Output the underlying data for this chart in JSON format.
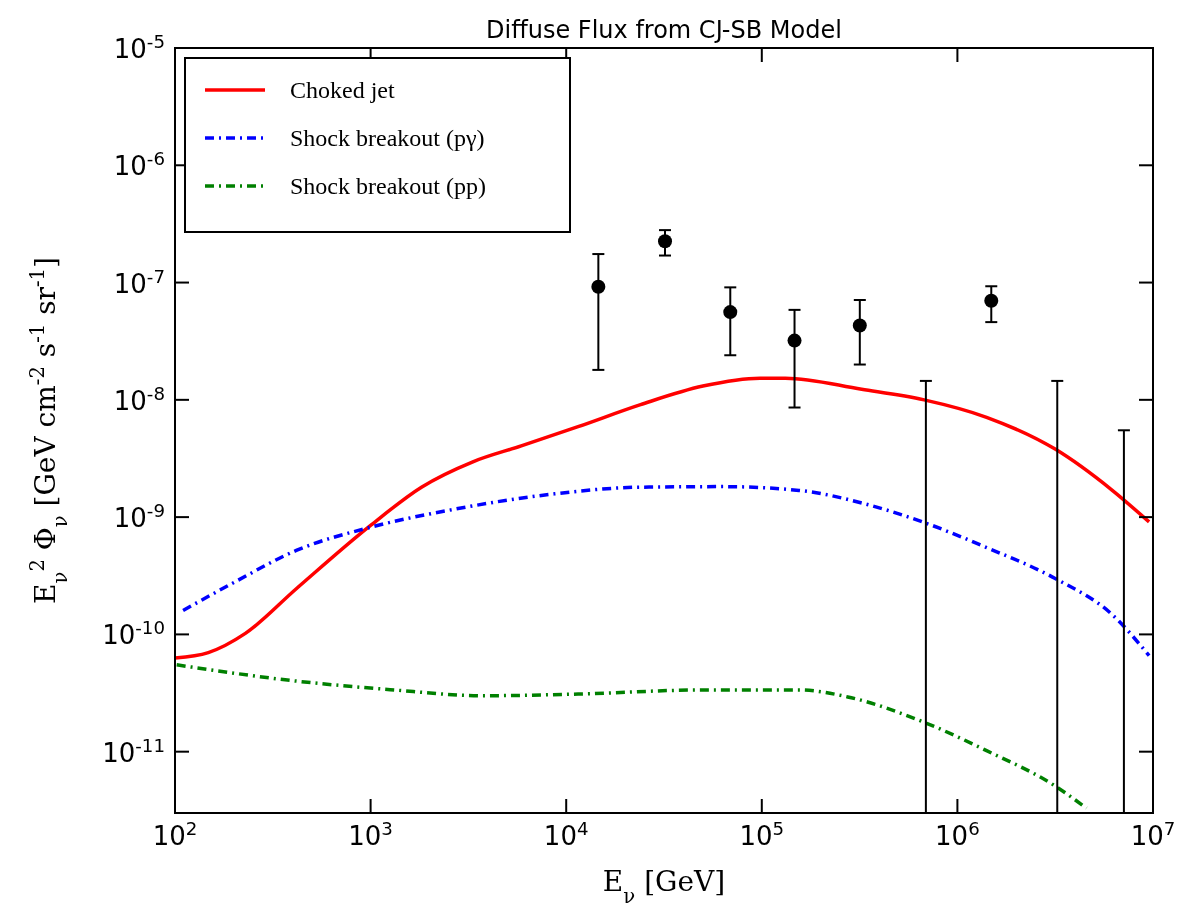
{
  "chart_data": {
    "type": "line",
    "title": "Diffuse Flux from CJ-SB Model",
    "xlabel": "E$_{ν}$  [GeV]",
    "ylabel": "E$_{ν}$$^{2}$ Φ$_{ν}$  [GeV cm$^{-2}$ s$^{-1}$ sr$^{-1}$]",
    "log": "xy",
    "grid": false,
    "legend": "top left",
    "xlim": [
      100,
      10000000
    ],
    "ylim": [
      3e-12,
      1e-05
    ],
    "xticks": [
      {
        "value": 100,
        "label": "10$^{2}$"
      },
      {
        "value": 1000,
        "label": "10$^{3}$"
      },
      {
        "value": 10000,
        "label": "10$^{4}$"
      },
      {
        "value": 100000,
        "label": "10$^{5}$"
      },
      {
        "value": 1000000,
        "label": "10$^{6}$"
      },
      {
        "value": 10000000,
        "label": "10$^{7}$"
      }
    ],
    "yticks": [
      {
        "value": 1e-11,
        "label": "10$^{-11}$"
      },
      {
        "value": 1e-10,
        "label": "10$^{-10}$"
      },
      {
        "value": 1e-09,
        "label": "10$^{-9}$"
      },
      {
        "value": 1e-08,
        "label": "10$^{-8}$"
      },
      {
        "value": 1e-07,
        "label": "10$^{-7}$"
      },
      {
        "value": 1e-06,
        "label": "10$^{-6}$"
      },
      {
        "value": 1e-05,
        "label": "10$^{-5}$"
      }
    ],
    "series": [
      {
        "name": "Choked jet",
        "color": "#ff0000",
        "line_style": "solid",
        "marker": "none",
        "x": [
          100,
          148,
          229,
          417,
          1000,
          1820,
          3310,
          5890,
          11500,
          24000,
          50000,
          98000,
          132000,
          324000,
          676000,
          1410000,
          3160000,
          6170000,
          9550000
        ],
        "values": [
          6.3e-11,
          7e-11,
          1.02e-10,
          2.45e-10,
          8.5e-10,
          1.8e-09,
          2.95e-09,
          4.05e-09,
          5.9e-09,
          9.1e-09,
          1.31e-08,
          1.53e-08,
          1.53e-08,
          1.23e-08,
          1e-08,
          7.1e-09,
          3.8e-09,
          1.7e-09,
          9.1e-10
        ]
      },
      {
        "name": "Shock breakout (pγ)",
        "color": "#0000ff",
        "line_style": "dashed",
        "marker": "none",
        "x": [
          110,
          200,
          417,
          1000,
          2630,
          7940,
          24000,
          63100,
          155000,
          324000,
          676000,
          1410000,
          3160000,
          6170000,
          9550000
        ],
        "values": [
          1.6e-10,
          2.77e-10,
          5.2e-10,
          8.2e-10,
          1.16e-09,
          1.55e-09,
          1.8e-09,
          1.82e-09,
          1.69e-09,
          1.32e-09,
          9e-10,
          5.5e-10,
          3e-10,
          1.48e-10,
          6.6e-11
        ]
      },
      {
        "name": "Shock breakout (pp)",
        "color": "#008000",
        "line_style": "dashed",
        "marker": "none",
        "x": [
          102,
          417,
          1260,
          3800,
          11500,
          50000,
          155000,
          275000,
          676000,
          1410000,
          3160000,
          4570000
        ],
        "values": [
          5.5e-11,
          4e-11,
          3.38e-11,
          3e-11,
          3.1e-11,
          3.36e-11,
          3.36e-11,
          2.93e-11,
          1.78e-11,
          1.02e-11,
          5.1e-12,
          3.3e-12
        ]
      },
      {
        "type": "scatter",
        "color": "#000000",
        "marker": "circle",
        "x": [
          14600,
          32000,
          69000,
          147000,
          317000,
          1490000
        ],
        "values": [
          9.2e-08,
          2.25e-07,
          5.6e-08,
          3.2e-08,
          4.3e-08,
          7e-08
        ],
        "errors": [
          [
            1.8e-08,
            1.75e-07
          ],
          [
            1.7e-07,
            2.8e-07
          ],
          [
            2.4e-08,
            9.1e-08
          ],
          [
            8.6e-09,
            5.85e-08
          ],
          [
            2e-08,
            7.1e-08
          ],
          [
            4.6e-08,
            9.3e-08
          ]
        ]
      },
      {
        "type": "line",
        "color": "#000000",
        "marker": "none",
        "line_style": "solid",
        "x": [
          690000,
          690000
        ],
        "values": [
          3e-12,
          1.45e-08
        ]
      },
      {
        "type": "line",
        "color": "#000000",
        "marker": "none",
        "line_style": "solid",
        "x": [
          3240000,
          3240000
        ],
        "values": [
          3e-12,
          1.45e-08
        ]
      },
      {
        "type": "line",
        "color": "#000000",
        "marker": "none",
        "line_style": "solid",
        "x": [
          7100000,
          7100000
        ],
        "values": [
          3e-12,
          5.5e-09
        ]
      }
    ]
  }
}
